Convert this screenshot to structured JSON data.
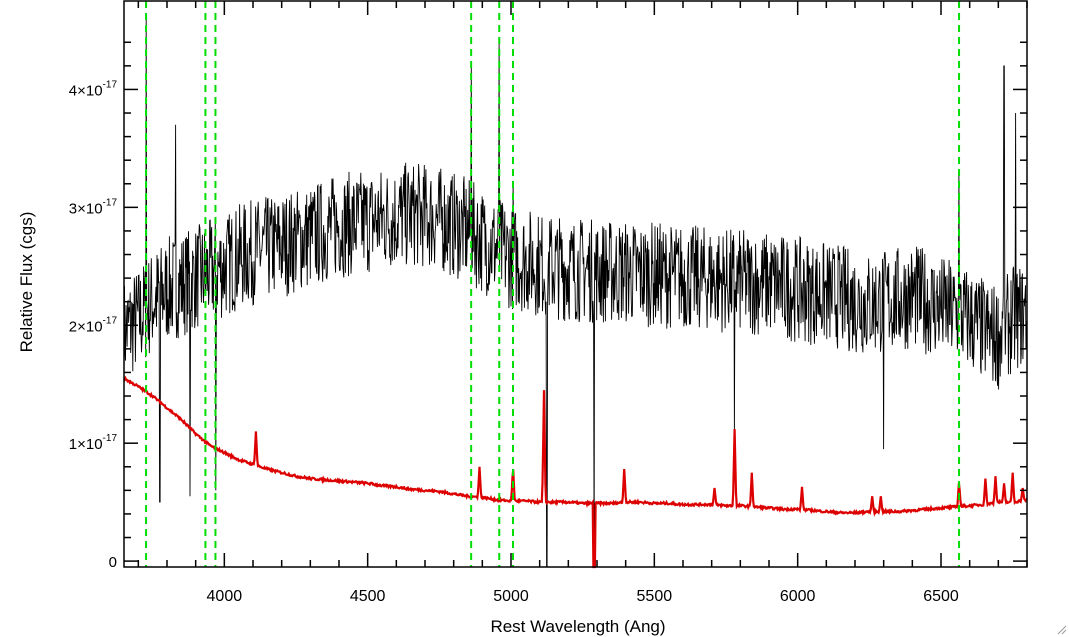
{
  "chart_data": {
    "type": "line",
    "title": "",
    "xlabel": "Rest Wavelength (Ang)",
    "ylabel": "Relative Flux (cgs)",
    "xlim": [
      3650,
      6800
    ],
    "ylim": [
      -0.05,
      4.75
    ],
    "y_unit_exponent": -17,
    "x_tick_values": [
      4000,
      4500,
      5000,
      5500,
      6000,
      6500
    ],
    "x_tick_labels": [
      "4000",
      "4500",
      "5000",
      "5500",
      "6000",
      "6500"
    ],
    "y_ticks": [
      {
        "value": 0,
        "mantissa": "0",
        "exponent": ""
      },
      {
        "value": 1,
        "mantissa": "1×10",
        "exponent": "-17"
      },
      {
        "value": 2,
        "mantissa": "2×10",
        "exponent": "-17"
      },
      {
        "value": 3,
        "mantissa": "3×10",
        "exponent": "-17"
      },
      {
        "value": 4,
        "mantissa": "4×10",
        "exponent": "-17"
      }
    ],
    "grid": false,
    "legend": "none",
    "line_markers": {
      "color": "#00dd00",
      "style": "dashed",
      "x": [
        3727,
        3934,
        3969,
        4861,
        4959,
        5007,
        6563
      ]
    },
    "series": [
      {
        "color": "#000000",
        "x": [
          3650,
          3700,
          3750,
          3800,
          3850,
          3900,
          3950,
          4000,
          4050,
          4100,
          4150,
          4200,
          4250,
          4300,
          4350,
          4400,
          4450,
          4500,
          4550,
          4600,
          4650,
          4700,
          4750,
          4800,
          4850,
          4900,
          4950,
          5000,
          5050,
          5100,
          5150,
          5200,
          5250,
          5300,
          5350,
          5400,
          5450,
          5500,
          5550,
          5600,
          5650,
          5700,
          5750,
          5800,
          5850,
          5900,
          5950,
          6000,
          6050,
          6100,
          6150,
          6200,
          6250,
          6300,
          6350,
          6400,
          6450,
          6500,
          6550,
          6600,
          6650,
          6700,
          6750,
          6800
        ],
        "y": [
          1.95,
          2.05,
          2.2,
          2.3,
          2.35,
          2.4,
          2.45,
          2.5,
          2.58,
          2.62,
          2.65,
          2.68,
          2.72,
          2.75,
          2.8,
          2.85,
          2.86,
          2.88,
          2.9,
          2.92,
          2.94,
          2.93,
          2.9,
          2.85,
          2.8,
          2.72,
          2.65,
          2.58,
          2.55,
          2.52,
          2.5,
          2.48,
          2.47,
          2.46,
          2.45,
          2.45,
          2.44,
          2.43,
          2.42,
          2.41,
          2.4,
          2.4,
          2.38,
          2.37,
          2.36,
          2.35,
          2.33,
          2.3,
          2.28,
          2.26,
          2.24,
          2.2,
          2.18,
          2.2,
          2.22,
          2.25,
          2.2,
          2.15,
          2.1,
          2.05,
          1.95,
          1.9,
          2.05,
          2.1
        ],
        "noise_amplitude": 0.45,
        "spikes": [
          {
            "x": 3727,
            "y": 4.6
          },
          {
            "x": 3775,
            "y": 0.5
          },
          {
            "x": 3830,
            "y": 3.7
          },
          {
            "x": 3880,
            "y": 0.55
          },
          {
            "x": 3970,
            "y": 0.6
          },
          {
            "x": 4861,
            "y": 4.2
          },
          {
            "x": 4959,
            "y": 4.4
          },
          {
            "x": 5007,
            "y": 3.2
          },
          {
            "x": 5125,
            "y": -0.05
          },
          {
            "x": 5290,
            "y": -0.05
          },
          {
            "x": 5780,
            "y": 1.1
          },
          {
            "x": 6300,
            "y": 0.95
          },
          {
            "x": 6563,
            "y": 3.3
          },
          {
            "x": 6720,
            "y": 4.2
          },
          {
            "x": 6760,
            "y": 3.8
          }
        ]
      },
      {
        "color": "#dd0000",
        "x": [
          3650,
          3700,
          3750,
          3800,
          3850,
          3900,
          3950,
          4000,
          4050,
          4100,
          4150,
          4200,
          4250,
          4300,
          4350,
          4400,
          4450,
          4500,
          4550,
          4600,
          4650,
          4700,
          4750,
          4800,
          4850,
          4900,
          4950,
          5000,
          5050,
          5100,
          5150,
          5200,
          5250,
          5300,
          5350,
          5400,
          5450,
          5500,
          5550,
          5600,
          5650,
          5700,
          5750,
          5800,
          5850,
          5900,
          5950,
          6000,
          6050,
          6100,
          6150,
          6200,
          6250,
          6300,
          6350,
          6400,
          6450,
          6500,
          6550,
          6600,
          6650,
          6700,
          6750,
          6800
        ],
        "y": [
          1.55,
          1.48,
          1.4,
          1.3,
          1.2,
          1.08,
          0.98,
          0.92,
          0.86,
          0.82,
          0.78,
          0.75,
          0.72,
          0.7,
          0.69,
          0.68,
          0.67,
          0.66,
          0.64,
          0.63,
          0.61,
          0.6,
          0.59,
          0.57,
          0.55,
          0.54,
          0.52,
          0.51,
          0.51,
          0.5,
          0.5,
          0.5,
          0.49,
          0.49,
          0.49,
          0.5,
          0.5,
          0.49,
          0.49,
          0.48,
          0.48,
          0.48,
          0.47,
          0.47,
          0.46,
          0.45,
          0.44,
          0.44,
          0.43,
          0.42,
          0.41,
          0.41,
          0.42,
          0.42,
          0.42,
          0.43,
          0.44,
          0.45,
          0.46,
          0.47,
          0.48,
          0.5,
          0.5,
          0.52
        ],
        "peaks": [
          {
            "x": 4110,
            "y": 1.1
          },
          {
            "x": 4890,
            "y": 0.8
          },
          {
            "x": 5007,
            "y": 0.8
          },
          {
            "x": 5115,
            "y": 1.45
          },
          {
            "x": 5290,
            "y": -0.05
          },
          {
            "x": 5395,
            "y": 0.78
          },
          {
            "x": 5710,
            "y": 0.62
          },
          {
            "x": 5780,
            "y": 1.12
          },
          {
            "x": 5840,
            "y": 0.75
          },
          {
            "x": 6015,
            "y": 0.63
          },
          {
            "x": 6260,
            "y": 0.55
          },
          {
            "x": 6290,
            "y": 0.55
          },
          {
            "x": 6563,
            "y": 0.68
          },
          {
            "x": 6655,
            "y": 0.7
          },
          {
            "x": 6690,
            "y": 0.72
          },
          {
            "x": 6720,
            "y": 0.66
          },
          {
            "x": 6750,
            "y": 0.75
          },
          {
            "x": 6785,
            "y": 0.62
          }
        ]
      }
    ]
  }
}
